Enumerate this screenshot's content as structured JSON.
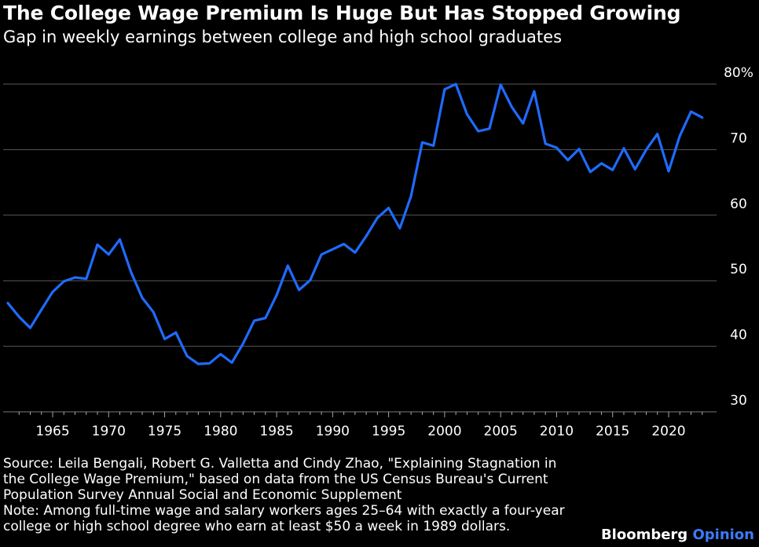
{
  "header": {
    "title": "The College Wage Premium Is Huge But Has Stopped Growing",
    "subtitle": "Gap in weekly earnings between college and high school graduates"
  },
  "footer": {
    "source_lines": [
      "Source: Leila Bengali, Robert G. Valletta and Cindy Zhao, \"Explaining Stagnation in",
      "the College Wage Premium,\" based on data from the US Census Bureau's Current",
      "Population Survey Annual Social and Economic Supplement"
    ],
    "note_lines": [
      "Note: Among full-time wage and salary workers ages 25–64 with exactly a four-year",
      "college or high school degree who earn at least $50 a week in 1989 dollars."
    ],
    "brand_primary": "Bloomberg",
    "brand_secondary": "Opinion"
  },
  "chart_data": {
    "type": "line",
    "ylim": [
      30,
      80
    ],
    "xlim": [
      1961,
      2024
    ],
    "grid": true,
    "line_color": "#1f6bff",
    "x_ticks": [
      1965,
      1970,
      1975,
      1980,
      1985,
      1990,
      1995,
      2000,
      2005,
      2010,
      2015,
      2020
    ],
    "y_ticks": [
      {
        "value": 80,
        "label": "80%"
      },
      {
        "value": 70,
        "label": "70"
      },
      {
        "value": 60,
        "label": "60"
      },
      {
        "value": 50,
        "label": "50"
      },
      {
        "value": 40,
        "label": "40"
      },
      {
        "value": 30,
        "label": "30"
      }
    ],
    "x": [
      1961,
      1962,
      1963,
      1964,
      1965,
      1966,
      1967,
      1968,
      1969,
      1970,
      1971,
      1972,
      1973,
      1974,
      1975,
      1976,
      1977,
      1978,
      1979,
      1980,
      1981,
      1982,
      1983,
      1984,
      1985,
      1986,
      1987,
      1988,
      1989,
      1990,
      1991,
      1992,
      1993,
      1994,
      1995,
      1996,
      1997,
      1998,
      1999,
      2000,
      2001,
      2002,
      2003,
      2004,
      2005,
      2006,
      2007,
      2008,
      2009,
      2010,
      2011,
      2012,
      2013,
      2014,
      2015,
      2016,
      2017,
      2018,
      2019,
      2020,
      2021,
      2022,
      2023
    ],
    "values": [
      46.6,
      44.5,
      42.8,
      45.6,
      48.3,
      49.9,
      50.5,
      50.3,
      55.5,
      54.0,
      56.3,
      51.3,
      47.4,
      45.2,
      41.1,
      42.1,
      38.5,
      37.3,
      37.4,
      38.8,
      37.5,
      40.4,
      43.9,
      44.3,
      47.8,
      52.3,
      48.6,
      50.1,
      54.0,
      54.8,
      55.6,
      54.3,
      56.8,
      59.6,
      61.1,
      58.0,
      62.9,
      71.1,
      70.6,
      79.2,
      80.0,
      75.4,
      72.8,
      73.2,
      79.9,
      76.5,
      74.0,
      78.9,
      70.9,
      70.3,
      68.4,
      70.1,
      66.6,
      67.9,
      66.9,
      70.2,
      67.0,
      70.0,
      72.4,
      66.7,
      72.1,
      75.8,
      74.9
    ]
  }
}
